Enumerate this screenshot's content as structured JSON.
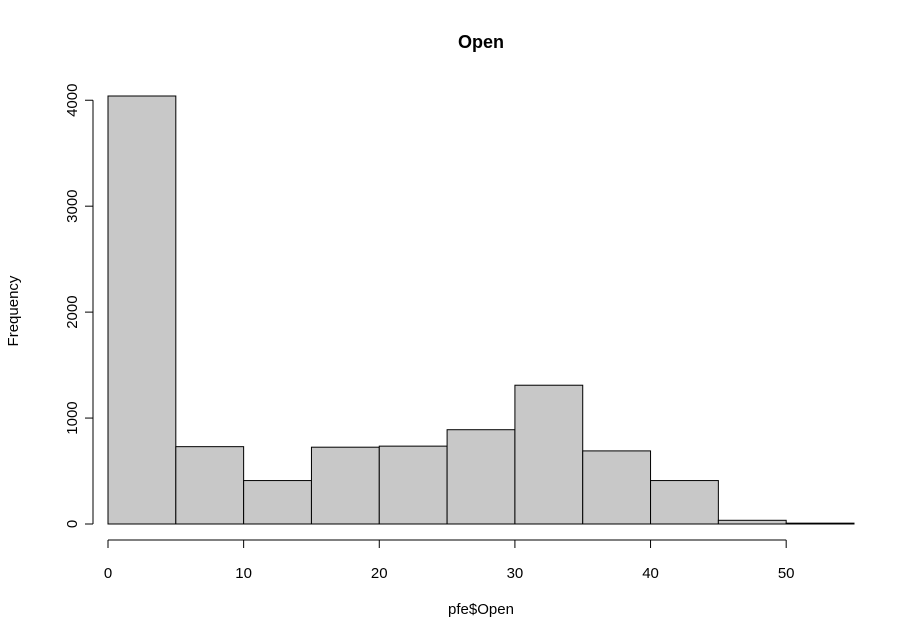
{
  "chart_data": {
    "type": "bar",
    "title": "Open",
    "xlabel": "pfe$Open",
    "ylabel": "Frequency",
    "bins": [
      {
        "start": 0,
        "end": 5,
        "count": 4040
      },
      {
        "start": 5,
        "end": 10,
        "count": 730
      },
      {
        "start": 10,
        "end": 15,
        "count": 410
      },
      {
        "start": 15,
        "end": 20,
        "count": 725
      },
      {
        "start": 20,
        "end": 25,
        "count": 735
      },
      {
        "start": 25,
        "end": 30,
        "count": 890
      },
      {
        "start": 30,
        "end": 35,
        "count": 1310
      },
      {
        "start": 35,
        "end": 40,
        "count": 690
      },
      {
        "start": 40,
        "end": 45,
        "count": 410
      },
      {
        "start": 45,
        "end": 50,
        "count": 35
      },
      {
        "start": 50,
        "end": 55,
        "count": 8
      }
    ],
    "xlim": [
      0,
      55
    ],
    "ylim": [
      0,
      4040
    ],
    "xticks": [
      0,
      10,
      20,
      30,
      40,
      50
    ],
    "yticks": [
      0,
      1000,
      2000,
      3000,
      4000
    ],
    "grid": false,
    "colors": {
      "bar_fill": "#c8c8c8",
      "bar_stroke": "#000000"
    }
  }
}
